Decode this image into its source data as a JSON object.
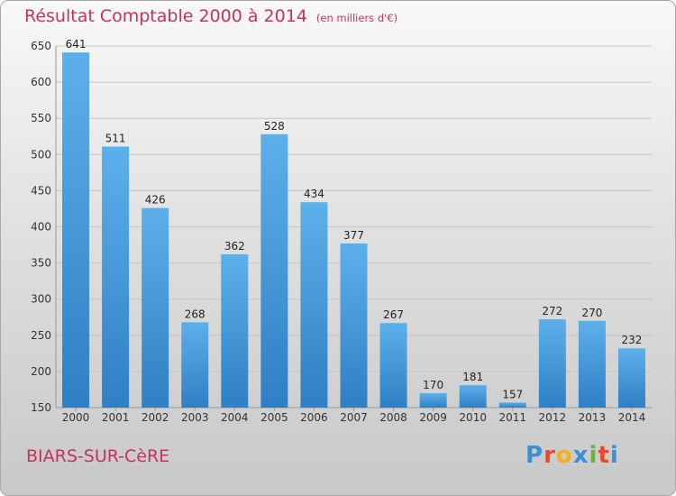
{
  "header": {
    "title": "Résultat Comptable 2000 à 2014",
    "subtitle": "(en milliers d'€)"
  },
  "footer": {
    "town": "BIARS-SUR-CèRE",
    "logo": "Proxiti"
  },
  "colors": {
    "accent": "#c8325a",
    "bar_light": "#5cb0ea",
    "bar_dark": "#2f7fc4",
    "logo": [
      "#3a8fd8",
      "#e8492c",
      "#f2b01e",
      "#3a8fd8",
      "#6ab23d",
      "#e8492c",
      "#3a8fd8"
    ]
  },
  "chart_data": {
    "type": "bar",
    "categories": [
      "2000",
      "2001",
      "2002",
      "2003",
      "2004",
      "2005",
      "2006",
      "2007",
      "2008",
      "2009",
      "2010",
      "2011",
      "2012",
      "2013",
      "2014"
    ],
    "values": [
      641,
      511,
      426,
      268,
      362,
      528,
      434,
      377,
      267,
      170,
      181,
      157,
      272,
      270,
      232
    ],
    "title": "Résultat Comptable 2000 à 2014",
    "subtitle": "(en milliers d'€)",
    "xlabel": "",
    "ylabel": "",
    "ylim": [
      150,
      650
    ],
    "yticks": [
      150,
      200,
      250,
      300,
      350,
      400,
      450,
      500,
      550,
      600,
      650
    ],
    "grid": true,
    "data_labels": true
  }
}
